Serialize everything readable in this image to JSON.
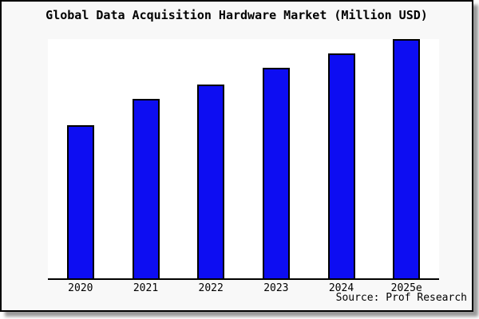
{
  "window": {
    "background": "#ffffff",
    "panel_background": "#f8f8f8",
    "panel_border_color": "#000000",
    "shadow_color": "#999999"
  },
  "chart_data": {
    "type": "bar",
    "title": "Global Data Acquisition Hardware Market (Million USD)",
    "categories": [
      "2020",
      "2021",
      "2022",
      "2023",
      "2024",
      "2025e"
    ],
    "values": [
      64,
      75,
      81,
      88,
      94,
      100
    ],
    "value_note": "relative bar heights (no y-axis or value labels shown; tallest bar 2025e indexed to 100)",
    "xlabel": "",
    "ylabel": "",
    "ylim": [
      0,
      100
    ],
    "grid": false,
    "legend": false,
    "y_axis_visible": false,
    "bar_color": "#0d0df2",
    "bar_border_color": "#000000",
    "axis_color": "#000000",
    "plot_background": "#ffffff",
    "source": "Source: Prof Research"
  }
}
